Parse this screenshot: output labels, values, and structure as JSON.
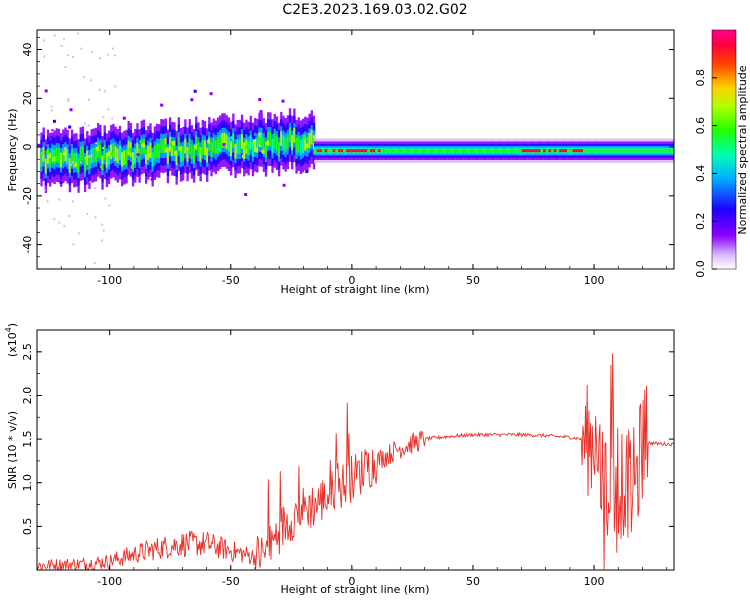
{
  "title": "C2E3.2023.169.03.02.G02",
  "chart_data": [
    {
      "type": "heatmap",
      "title": "C2E3.2023.169.03.02.G02",
      "xlabel": "Height of straight line (km)",
      "ylabel": "Frequency (Hz)",
      "xlim": [
        -130,
        133
      ],
      "ylim": [
        -50,
        48
      ],
      "x_ticks": [
        -100,
        -50,
        0,
        50,
        100
      ],
      "y_ticks": [
        -40,
        -20,
        0,
        20,
        40
      ],
      "colorbar": {
        "label": "Normalized spectral amplitude",
        "range": [
          0,
          1
        ],
        "ticks": [
          "0.0",
          "0.2",
          "0.4",
          "0.6",
          "0.8"
        ],
        "colors": [
          "#ffffff",
          "#8a00ff",
          "#0000ff",
          "#00bfff",
          "#00ff80",
          "#7fff00",
          "#ffff00",
          "#ff8000",
          "#ff0000",
          "#ff0080"
        ]
      },
      "band": {
        "note_free": true,
        "segments": [
          {
            "x": [
              -128,
              -15
            ],
            "center_freq": -3,
            "spread": 10
          },
          {
            "x": [
              -15,
              133
            ],
            "center_freq": -1.5,
            "spread": 3
          }
        ]
      }
    },
    {
      "type": "line",
      "xlabel": "Height of straight line (km)",
      "ylabel": "SNR (10 * v/v)",
      "multiplier": "(x10",
      "multiplier_exp": "4",
      "multiplier_close": ")",
      "xlim": [
        -130,
        133
      ],
      "ylim": [
        0,
        2.75
      ],
      "x_ticks": [
        -100,
        -50,
        0,
        50,
        100
      ],
      "y_ticks": [
        0.5,
        1.0,
        1.5,
        2.0,
        2.5
      ],
      "color": "#e8312a",
      "envelope": {
        "x": [
          -130,
          -110,
          -100,
          -90,
          -80,
          -70,
          -60,
          -50,
          -40,
          -35,
          -30,
          -25,
          -20,
          -15,
          -10,
          -5,
          0,
          5,
          10,
          15,
          20,
          30,
          40,
          50,
          60,
          70,
          80,
          90,
          95,
          100,
          103,
          105,
          108,
          110,
          112,
          115,
          118,
          120,
          125,
          133
        ],
        "y": [
          0.05,
          0.07,
          0.1,
          0.18,
          0.25,
          0.3,
          0.3,
          0.22,
          0.15,
          0.2,
          0.45,
          0.6,
          0.7,
          0.75,
          0.85,
          0.95,
          1.05,
          1.15,
          1.25,
          1.32,
          1.4,
          1.5,
          1.53,
          1.55,
          1.55,
          1.55,
          1.54,
          1.52,
          1.5,
          1.48,
          1.2,
          0.8,
          1.0,
          0.7,
          1.2,
          0.9,
          1.1,
          1.46,
          1.45,
          1.44
        ]
      }
    }
  ]
}
